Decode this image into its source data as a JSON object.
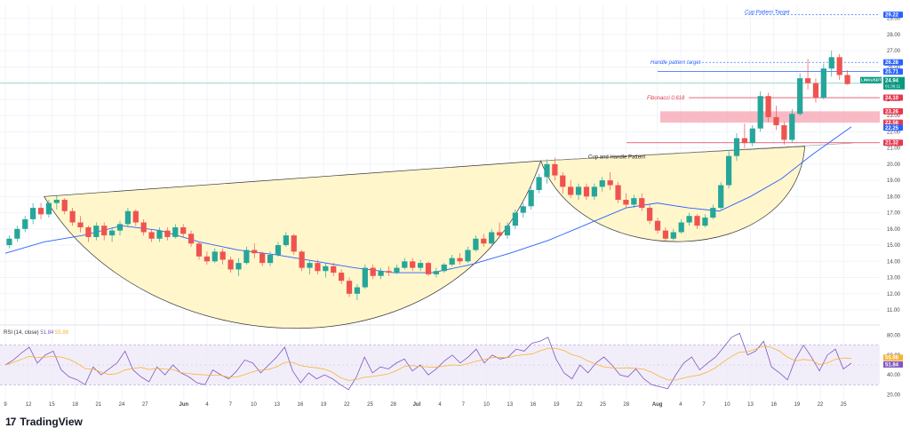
{
  "brand": {
    "name": "TradingView",
    "logo_icon": "tradingview-logo-icon"
  },
  "chart_data": {
    "type": "candlestick",
    "price_axis": {
      "ticks": [
        "29.00",
        "28.00",
        "27.00",
        "26.00",
        "25.00",
        "24.00",
        "23.00",
        "22.00",
        "21.00",
        "20.00",
        "19.00",
        "18.00",
        "17.00",
        "16.00",
        "15.00",
        "14.00",
        "13.00",
        "12.00",
        "11.00"
      ],
      "tick_values": [
        29,
        28,
        27,
        26,
        25,
        24,
        23,
        22,
        21,
        20,
        19,
        18,
        17,
        16,
        15,
        14,
        13,
        12,
        11
      ],
      "range": [
        10.4,
        29.8
      ]
    },
    "time_axis": {
      "labels": [
        "9",
        "12",
        "15",
        "18",
        "21",
        "24",
        "27",
        "Jun",
        "4",
        "7",
        "10",
        "13",
        "16",
        "19",
        "22",
        "25",
        "28",
        "Jul",
        "4",
        "7",
        "10",
        "13",
        "16",
        "19",
        "22",
        "25",
        "28",
        "Aug",
        "4",
        "7",
        "10",
        "13",
        "16",
        "19",
        "22",
        "25"
      ],
      "day_index": [
        0,
        3,
        6,
        9,
        12,
        15,
        18,
        23,
        26,
        29,
        32,
        35,
        38,
        41,
        44,
        47,
        50,
        53,
        56,
        59,
        62,
        65,
        68,
        71,
        74,
        77,
        80,
        84,
        87,
        90,
        93,
        96,
        99,
        102,
        105,
        108
      ]
    },
    "last_price": {
      "symbol": "LINKUSDT",
      "value": "24.94",
      "countdown": "01:36:11"
    },
    "price_badges": [
      {
        "value": "29.22",
        "kind": "blue"
      },
      {
        "value": "26.28",
        "kind": "blue"
      },
      {
        "value": "25.71",
        "kind": "blue"
      },
      {
        "value": "24.10",
        "kind": "red"
      },
      {
        "value": "23.26",
        "kind": "red"
      },
      {
        "value": "22.56",
        "kind": "red"
      },
      {
        "value": "22.25",
        "kind": "blue"
      },
      {
        "value": "21.32",
        "kind": "red"
      }
    ],
    "annotations": {
      "cup_target": "Cup Pattern Target",
      "handle_target": "Handle pattern target",
      "fibonacci": "Fibonacci 0.618",
      "pattern": "Cup and Handle Pattern"
    },
    "candles": [
      [
        15.0,
        15.6,
        14.8,
        15.4
      ],
      [
        15.4,
        16.2,
        15.2,
        16.0
      ],
      [
        16.0,
        16.8,
        15.8,
        16.6
      ],
      [
        16.6,
        17.6,
        16.3,
        17.3
      ],
      [
        17.3,
        17.6,
        16.6,
        16.9
      ],
      [
        16.9,
        17.8,
        16.7,
        17.6
      ],
      [
        17.6,
        18.1,
        17.2,
        17.8
      ],
      [
        17.8,
        17.9,
        16.9,
        17.1
      ],
      [
        17.1,
        17.3,
        16.2,
        16.4
      ],
      [
        16.4,
        16.8,
        15.8,
        16.1
      ],
      [
        16.1,
        16.2,
        15.2,
        15.5
      ],
      [
        15.5,
        16.4,
        15.3,
        16.2
      ],
      [
        16.2,
        16.4,
        15.3,
        15.6
      ],
      [
        15.6,
        16.1,
        15.2,
        15.9
      ],
      [
        15.9,
        16.5,
        15.6,
        16.3
      ],
      [
        16.3,
        17.3,
        16.1,
        17.1
      ],
      [
        17.1,
        17.2,
        16.2,
        16.4
      ],
      [
        16.4,
        16.6,
        15.6,
        15.8
      ],
      [
        15.8,
        16.0,
        15.2,
        15.4
      ],
      [
        15.4,
        16.1,
        15.2,
        15.9
      ],
      [
        15.9,
        16.1,
        15.3,
        15.5
      ],
      [
        15.5,
        16.3,
        15.4,
        16.1
      ],
      [
        16.1,
        16.3,
        15.5,
        15.7
      ],
      [
        15.7,
        15.9,
        14.9,
        15.1
      ],
      [
        15.1,
        15.2,
        14.1,
        14.3
      ],
      [
        14.3,
        14.6,
        13.8,
        14.0
      ],
      [
        14.0,
        14.8,
        13.9,
        14.6
      ],
      [
        14.6,
        14.8,
        13.8,
        14.1
      ],
      [
        14.1,
        14.3,
        13.3,
        13.5
      ],
      [
        13.5,
        14.2,
        13.1,
        13.9
      ],
      [
        13.9,
        14.9,
        13.8,
        14.7
      ],
      [
        14.7,
        15.1,
        14.2,
        14.5
      ],
      [
        14.5,
        14.6,
        13.7,
        13.9
      ],
      [
        13.9,
        14.6,
        13.7,
        14.4
      ],
      [
        14.4,
        15.2,
        14.3,
        15.0
      ],
      [
        15.0,
        15.8,
        14.9,
        15.6
      ],
      [
        15.6,
        15.7,
        14.4,
        14.6
      ],
      [
        14.6,
        14.7,
        13.4,
        13.6
      ],
      [
        13.6,
        14.1,
        13.2,
        13.9
      ],
      [
        13.9,
        14.1,
        13.2,
        13.4
      ],
      [
        13.4,
        13.9,
        13.0,
        13.7
      ],
      [
        13.7,
        13.9,
        13.1,
        13.3
      ],
      [
        13.3,
        13.5,
        12.6,
        12.8
      ],
      [
        12.8,
        13.0,
        11.8,
        12.0
      ],
      [
        12.0,
        12.6,
        11.6,
        12.4
      ],
      [
        12.4,
        13.8,
        12.3,
        13.6
      ],
      [
        13.6,
        13.8,
        12.9,
        13.1
      ],
      [
        13.1,
        13.6,
        12.9,
        13.4
      ],
      [
        13.4,
        13.7,
        13.1,
        13.3
      ],
      [
        13.3,
        13.8,
        13.2,
        13.6
      ],
      [
        13.6,
        14.2,
        13.5,
        14.0
      ],
      [
        14.0,
        14.2,
        13.4,
        13.6
      ],
      [
        13.6,
        14.1,
        13.4,
        13.9
      ],
      [
        13.9,
        14.0,
        13.1,
        13.2
      ],
      [
        13.2,
        13.6,
        13.0,
        13.4
      ],
      [
        13.4,
        13.9,
        13.3,
        13.8
      ],
      [
        13.8,
        14.4,
        13.7,
        14.2
      ],
      [
        14.2,
        14.5,
        13.8,
        14.0
      ],
      [
        14.0,
        14.9,
        13.9,
        14.7
      ],
      [
        14.7,
        15.6,
        14.6,
        15.4
      ],
      [
        15.4,
        15.7,
        14.9,
        15.1
      ],
      [
        15.1,
        16.0,
        15.0,
        15.8
      ],
      [
        15.8,
        16.4,
        15.5,
        15.6
      ],
      [
        15.6,
        16.4,
        15.4,
        16.2
      ],
      [
        16.2,
        17.2,
        16.0,
        17.0
      ],
      [
        17.0,
        17.6,
        16.7,
        17.4
      ],
      [
        17.4,
        18.6,
        17.2,
        18.4
      ],
      [
        18.4,
        19.4,
        18.2,
        19.2
      ],
      [
        19.2,
        20.3,
        18.8,
        20.0
      ],
      [
        20.0,
        20.4,
        19.0,
        19.3
      ],
      [
        19.3,
        19.5,
        18.2,
        18.6
      ],
      [
        18.6,
        19.0,
        17.9,
        18.1
      ],
      [
        18.1,
        18.8,
        17.8,
        18.6
      ],
      [
        18.6,
        18.8,
        17.8,
        18.0
      ],
      [
        18.0,
        18.8,
        17.8,
        18.6
      ],
      [
        18.6,
        19.2,
        18.3,
        19.0
      ],
      [
        19.0,
        19.5,
        18.4,
        18.7
      ],
      [
        18.7,
        18.9,
        17.6,
        17.8
      ],
      [
        17.8,
        18.2,
        17.3,
        17.5
      ],
      [
        17.5,
        18.1,
        17.3,
        17.9
      ],
      [
        17.9,
        18.2,
        17.1,
        17.3
      ],
      [
        17.3,
        17.5,
        16.3,
        16.5
      ],
      [
        16.5,
        16.7,
        15.7,
        15.9
      ],
      [
        15.9,
        16.1,
        15.2,
        15.4
      ],
      [
        15.4,
        16.0,
        15.3,
        15.8
      ],
      [
        15.8,
        16.6,
        15.7,
        16.4
      ],
      [
        16.4,
        17.0,
        16.2,
        16.8
      ],
      [
        16.8,
        16.9,
        16.0,
        16.2
      ],
      [
        16.2,
        16.9,
        16.1,
        16.7
      ],
      [
        16.7,
        17.5,
        16.6,
        17.3
      ],
      [
        17.3,
        18.9,
        17.2,
        18.7
      ],
      [
        18.7,
        20.8,
        18.5,
        20.5
      ],
      [
        20.5,
        21.9,
        20.2,
        21.6
      ],
      [
        21.6,
        22.5,
        21.0,
        21.3
      ],
      [
        21.3,
        22.4,
        21.1,
        22.2
      ],
      [
        22.2,
        24.5,
        22.0,
        24.2
      ],
      [
        24.2,
        24.4,
        22.6,
        22.9
      ],
      [
        22.9,
        23.6,
        22.1,
        22.4
      ],
      [
        22.4,
        22.6,
        21.2,
        21.5
      ],
      [
        21.5,
        23.4,
        21.3,
        23.1
      ],
      [
        23.1,
        25.6,
        23.0,
        25.3
      ],
      [
        25.3,
        26.5,
        24.6,
        25.0
      ],
      [
        25.0,
        25.3,
        23.8,
        24.1
      ],
      [
        24.1,
        26.2,
        24.0,
        25.9
      ],
      [
        25.9,
        27.0,
        25.4,
        26.6
      ],
      [
        26.6,
        26.8,
        25.2,
        25.5
      ],
      [
        25.5,
        25.8,
        24.9,
        24.94
      ]
    ],
    "ma_series": [
      [
        0,
        14.5
      ],
      [
        5,
        15.2
      ],
      [
        10,
        15.6
      ],
      [
        15,
        16.2
      ],
      [
        20,
        15.9
      ],
      [
        25,
        15.2
      ],
      [
        30,
        14.7
      ],
      [
        35,
        14.4
      ],
      [
        40,
        14.0
      ],
      [
        45,
        13.6
      ],
      [
        50,
        13.3
      ],
      [
        55,
        13.3
      ],
      [
        60,
        13.8
      ],
      [
        65,
        14.5
      ],
      [
        70,
        15.3
      ],
      [
        75,
        16.3
      ],
      [
        80,
        17.3
      ],
      [
        84,
        17.6
      ],
      [
        88,
        17.3
      ],
      [
        92,
        17.1
      ],
      [
        96,
        18.0
      ],
      [
        100,
        19.1
      ],
      [
        104,
        20.6
      ],
      [
        109,
        22.3
      ]
    ],
    "rsi": {
      "label": "RSI (14, close)",
      "value": "51.84",
      "ma_value": "55.98",
      "ticks": [
        "80.00",
        "60.00",
        "40.00",
        "20.00"
      ],
      "tick_values": [
        80,
        60,
        40,
        20
      ],
      "bands": [
        70,
        30
      ],
      "values": [
        50,
        55,
        62,
        68,
        52,
        60,
        64,
        45,
        38,
        35,
        30,
        48,
        40,
        46,
        52,
        64,
        45,
        38,
        33,
        48,
        40,
        50,
        42,
        38,
        32,
        30,
        45,
        40,
        36,
        44,
        55,
        52,
        42,
        50,
        58,
        68,
        44,
        32,
        42,
        36,
        40,
        36,
        30,
        25,
        38,
        58,
        42,
        48,
        46,
        52,
        56,
        44,
        50,
        40,
        46,
        54,
        60,
        52,
        58,
        66,
        52,
        60,
        56,
        58,
        66,
        64,
        72,
        74,
        78,
        56,
        42,
        36,
        50,
        42,
        52,
        58,
        50,
        40,
        38,
        46,
        36,
        30,
        28,
        26,
        40,
        52,
        58,
        45,
        52,
        58,
        68,
        78,
        82,
        60,
        64,
        74,
        48,
        42,
        35,
        56,
        70,
        58,
        44,
        60,
        66,
        46,
        51.84
      ]
    }
  }
}
